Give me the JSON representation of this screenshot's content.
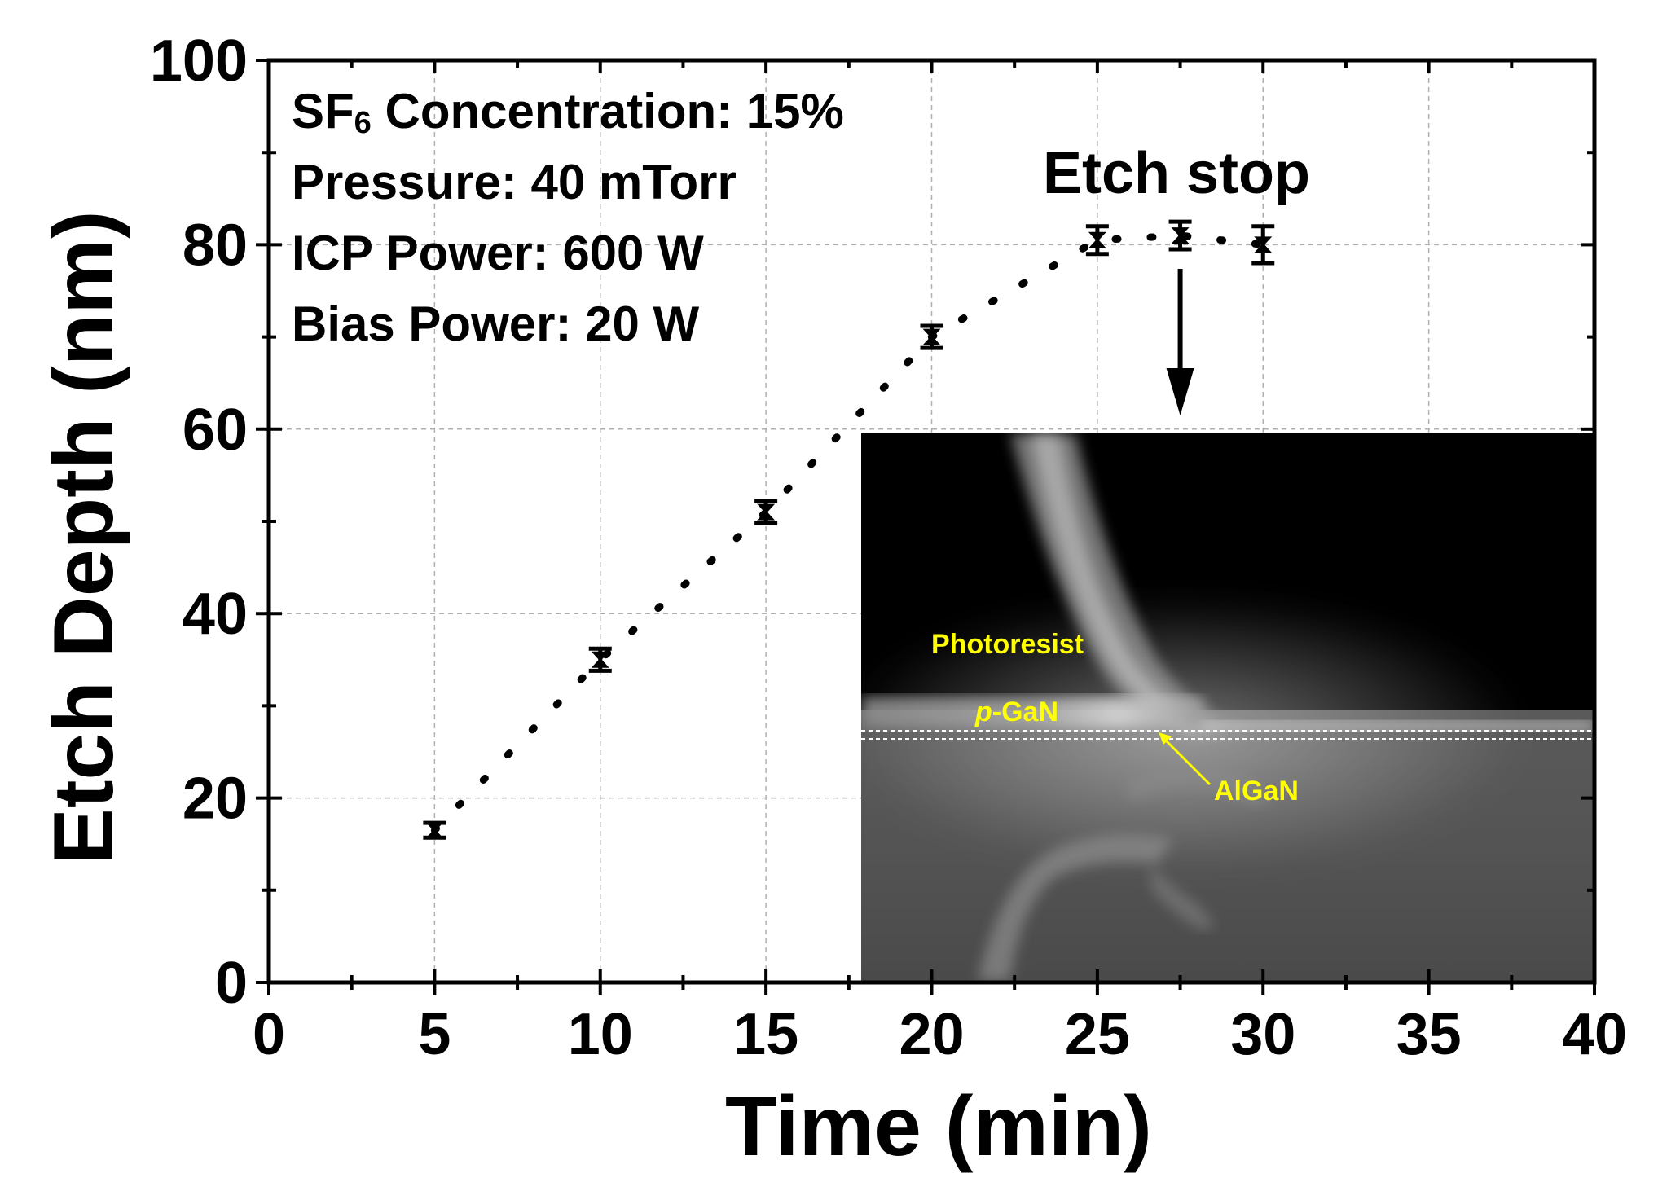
{
  "chart_data": {
    "type": "scatter",
    "title": "",
    "xlabel": "Time (min)",
    "ylabel": "Etch Depth (nm)",
    "xlim": [
      0,
      40
    ],
    "ylim": [
      0,
      100
    ],
    "x_ticks": [
      0,
      5,
      10,
      15,
      20,
      25,
      30,
      35,
      40
    ],
    "y_ticks": [
      0,
      20,
      40,
      60,
      80,
      100
    ],
    "grid": true,
    "series": [
      {
        "name": "Etch depth",
        "x": [
          5,
          10,
          15,
          20,
          25,
          27.5,
          30
        ],
        "values": [
          16.5,
          35,
          51,
          70,
          80.5,
          81,
          80
        ],
        "error": [
          0.8,
          1.2,
          1.2,
          1.2,
          1.5,
          1.5,
          2.0
        ]
      }
    ],
    "trend_line": {
      "style": "dotted",
      "points": [
        [
          5,
          16.5
        ],
        [
          10,
          35
        ],
        [
          15,
          51
        ],
        [
          20,
          70
        ],
        [
          25,
          80.5
        ],
        [
          27.5,
          81
        ],
        [
          30,
          80
        ]
      ]
    },
    "annotations": {
      "conditions": [
        {
          "pre": "SF",
          "sub": "6",
          "post": " Concentration: 15%"
        },
        {
          "pre": "Pressure: 40 mTorr",
          "sub": "",
          "post": ""
        },
        {
          "pre": "ICP Power: 600 W",
          "sub": "",
          "post": ""
        },
        {
          "pre": "Bias Power: 20 W",
          "sub": "",
          "post": ""
        }
      ],
      "etch_stop": "Etch stop",
      "etch_stop_x": 27.5
    },
    "inset": {
      "labels": {
        "photoresist": "Photoresist",
        "pgan_italic": "p",
        "pgan_rest": "-GaN",
        "algan": "AlGaN"
      }
    }
  },
  "colors": {
    "marker": "#000000",
    "grid": "#b0b0b0",
    "inset_label": "#ffff00"
  }
}
